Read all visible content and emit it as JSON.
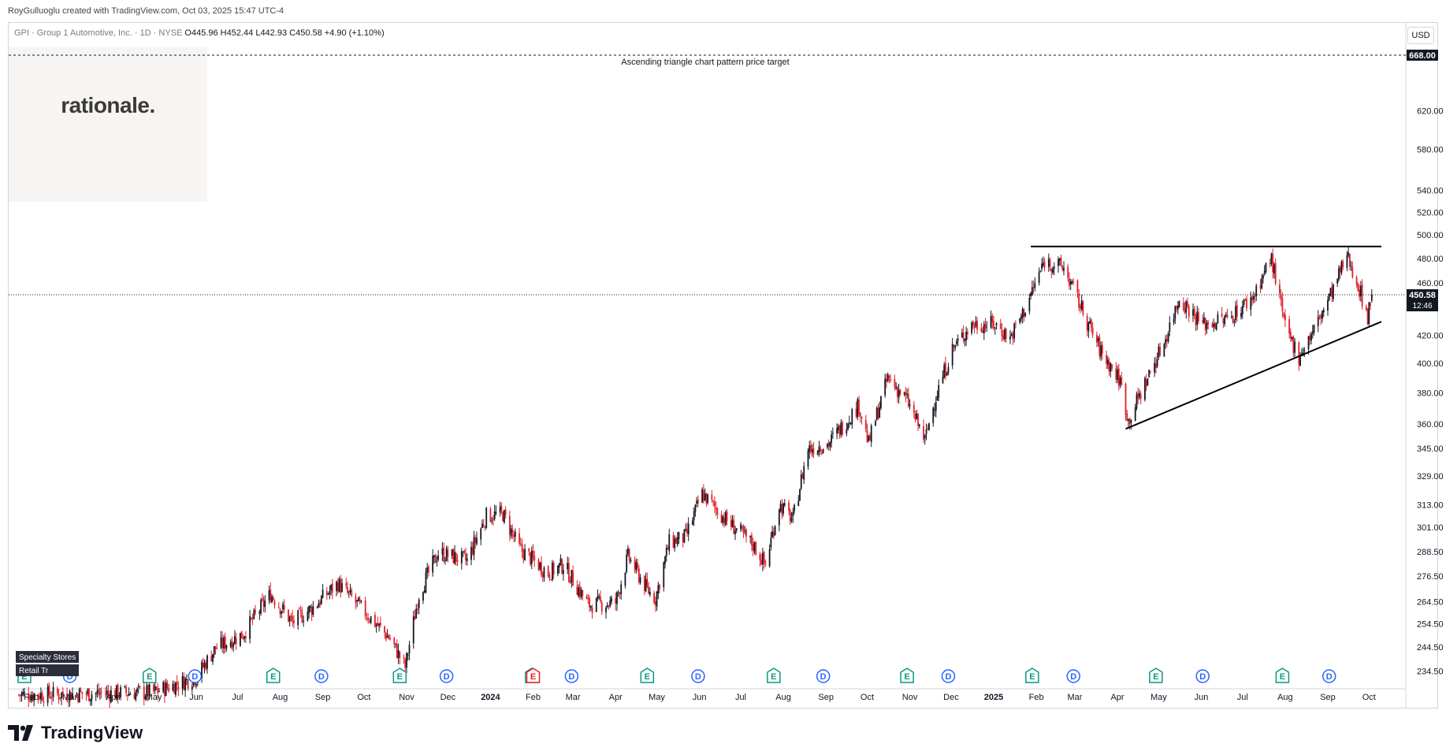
{
  "credit": "RoyGulluoglu created with TradingView.com, Oct 03, 2025 15:47 UTC-4",
  "legend": {
    "symbol": "GPI · Group 1 Automotive, Inc. · 1D · NYSE",
    "ohlc": "O445.96  H452.44  L442.93  C450.58  +4.90 (+1.10%)"
  },
  "watermark": "rationale.",
  "currency": "USD",
  "target_label": "668.00",
  "target_annotation": "Ascending triangle chart pattern price target",
  "price_label": "450.58",
  "countdown_label": "12:46",
  "sector_labels": [
    "Specialty Stores",
    "Retail Tr"
  ],
  "brand": "TradingView",
  "colors": {
    "up": "#131722",
    "down": "#e0202a",
    "axis_bg": "#131722",
    "grid": "#d1d4dc"
  },
  "chart_data": {
    "type": "candlestick",
    "symbol": "GPI",
    "y_scale": "log",
    "ylim": [
      228,
      700
    ],
    "y_ticks": [
      234.5,
      244.5,
      254.5,
      264.5,
      276.5,
      288.5,
      301,
      313,
      329,
      345,
      360,
      380,
      400,
      420,
      460,
      480,
      500,
      520,
      540,
      580,
      620
    ],
    "y_tick_labels": [
      "234.50",
      "244.50",
      "254.50",
      "264.50",
      "276.50",
      "288.50",
      "301.00",
      "313.00",
      "329.00",
      "345.00",
      "360.00",
      "380.00",
      "400.00",
      "420.00",
      "460.00",
      "480.00",
      "500.00",
      "520.00",
      "540.00",
      "580.00",
      "620.00"
    ],
    "x_labels": [
      "Feb",
      "Mar",
      "Apr",
      "May",
      "Jun",
      "Jul",
      "Aug",
      "Sep",
      "Oct",
      "Nov",
      "Dec",
      "2024",
      "Feb",
      "Mar",
      "Apr",
      "May",
      "Jun",
      "Jul",
      "Aug",
      "Sep",
      "Oct",
      "Nov",
      "Dec",
      "2025",
      "Feb",
      "Mar",
      "Apr",
      "May",
      "Jun",
      "Jul",
      "Aug",
      "Sep",
      "Oct"
    ],
    "x_start": "2023-01-23",
    "x_end": "2025-10-03",
    "last_close": 450.58,
    "price_target": 668.0,
    "resistance": {
      "from": "2025-01-28",
      "to": "2025-10-10",
      "value": 490
    },
    "support": {
      "from": "2025-04-07",
      "to": "2025-10-10",
      "values": [
        357,
        430
      ]
    },
    "price_path": [
      [
        "2023-01-23",
        225
      ],
      [
        "2023-05-01",
        226
      ],
      [
        "2023-06-01",
        232
      ],
      [
        "2023-06-15",
        244
      ],
      [
        "2023-07-05",
        250
      ],
      [
        "2023-07-25",
        268
      ],
      [
        "2023-08-10",
        255
      ],
      [
        "2023-08-25",
        262
      ],
      [
        "2023-09-12",
        273
      ],
      [
        "2023-09-28",
        262
      ],
      [
        "2023-10-20",
        248
      ],
      [
        "2023-10-31",
        236
      ],
      [
        "2023-11-10",
        268
      ],
      [
        "2023-11-24",
        288
      ],
      [
        "2023-12-15",
        284
      ],
      [
        "2023-12-29",
        307
      ],
      [
        "2024-01-10",
        308
      ],
      [
        "2024-01-22",
        290
      ],
      [
        "2024-02-12",
        278
      ],
      [
        "2024-02-23",
        282
      ],
      [
        "2024-03-12",
        263
      ],
      [
        "2024-04-01",
        264
      ],
      [
        "2024-04-10",
        286
      ],
      [
        "2024-04-24",
        270
      ],
      [
        "2024-04-30",
        266
      ],
      [
        "2024-05-10",
        293
      ],
      [
        "2024-05-22",
        296
      ],
      [
        "2024-06-03",
        319
      ],
      [
        "2024-06-20",
        305
      ],
      [
        "2024-07-10",
        292
      ],
      [
        "2024-07-19",
        282
      ],
      [
        "2024-07-29",
        313
      ],
      [
        "2024-08-08",
        305
      ],
      [
        "2024-08-19",
        345
      ],
      [
        "2024-09-03",
        348
      ],
      [
        "2024-09-25",
        372
      ],
      [
        "2024-10-02",
        348
      ],
      [
        "2024-10-16",
        390
      ],
      [
        "2024-10-30",
        375
      ],
      [
        "2024-11-12",
        350
      ],
      [
        "2024-11-20",
        378
      ],
      [
        "2024-12-02",
        410
      ],
      [
        "2024-12-16",
        428
      ],
      [
        "2025-01-02",
        428
      ],
      [
        "2025-01-13",
        418
      ],
      [
        "2025-01-24",
        440
      ],
      [
        "2025-02-07",
        478
      ],
      [
        "2025-02-21",
        472
      ],
      [
        "2025-03-10",
        430
      ],
      [
        "2025-03-20",
        408
      ],
      [
        "2025-04-03",
        388
      ],
      [
        "2025-04-09",
        362
      ],
      [
        "2025-04-22",
        388
      ],
      [
        "2025-05-05",
        415
      ],
      [
        "2025-05-16",
        448
      ],
      [
        "2025-06-02",
        428
      ],
      [
        "2025-06-20",
        432
      ],
      [
        "2025-07-08",
        448
      ],
      [
        "2025-07-22",
        480
      ],
      [
        "2025-08-01",
        425
      ],
      [
        "2025-08-11",
        405
      ],
      [
        "2025-08-22",
        424
      ],
      [
        "2025-09-05",
        455
      ],
      [
        "2025-09-15",
        482
      ],
      [
        "2025-09-22",
        462
      ],
      [
        "2025-09-30",
        434
      ],
      [
        "2025-10-03",
        450
      ]
    ],
    "events": {
      "earnings": [
        "2023-01-27",
        "2023-04-28",
        "2023-07-27",
        "2023-10-27",
        "2024-01-31",
        "2024-04-24",
        "2024-07-25",
        "2024-10-30",
        "2025-01-29",
        "2025-04-29",
        "2025-07-30"
      ],
      "dividends": [
        "2023-03-01",
        "2023-05-31",
        "2023-08-31",
        "2023-11-30",
        "2024-02-29",
        "2024-05-31",
        "2024-08-30",
        "2024-11-29",
        "2025-02-28",
        "2025-06-02",
        "2025-09-02"
      ],
      "earnings_negative": [
        "2024-02-01"
      ]
    }
  }
}
